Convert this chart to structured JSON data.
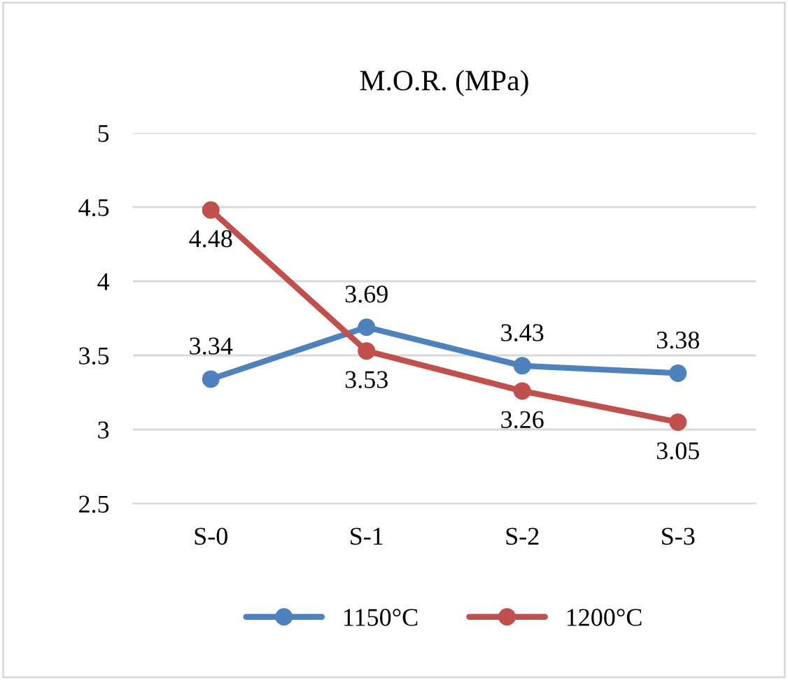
{
  "chart_data": {
    "type": "line",
    "title": "M.O.R. (MPa)",
    "categories": [
      "S-0",
      "S-1",
      "S-2",
      "S-3"
    ],
    "series": [
      {
        "name": "1150°C",
        "color": "#4f81bd",
        "values": [
          3.34,
          3.69,
          3.43,
          3.38
        ]
      },
      {
        "name": "1200°C",
        "color": "#c0504d",
        "values": [
          4.48,
          3.53,
          3.26,
          3.05
        ]
      }
    ],
    "ylim": [
      2.5,
      5
    ],
    "yticks": [
      2.5,
      3,
      3.5,
      4,
      4.5,
      5
    ],
    "grid": "y",
    "legend": "bottom",
    "marker": "circle",
    "line_style": "solid",
    "data_labels": true
  }
}
